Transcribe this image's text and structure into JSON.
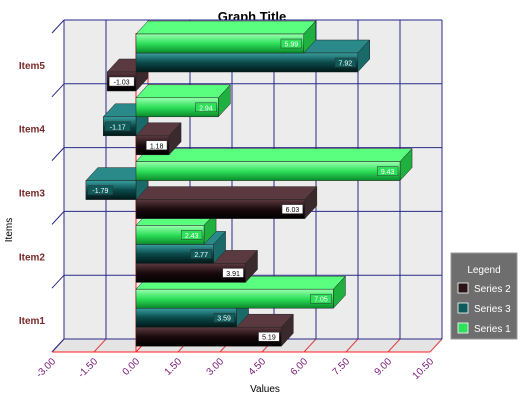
{
  "chart_data": {
    "type": "bar",
    "orientation": "horizontal",
    "title": "Graph Title",
    "xlabel": "Values",
    "ylabel": "Items",
    "categories": [
      "Item1",
      "Item2",
      "Item3",
      "Item4",
      "Item5"
    ],
    "xlim": [
      -3.0,
      10.5
    ],
    "x_ticks": [
      "-3.00",
      "-1.50",
      "0.00",
      "1.50",
      "3.00",
      "4.50",
      "6.00",
      "7.50",
      "9.00",
      "10.50"
    ],
    "series": [
      {
        "name": "Series 2",
        "values": [
          5.19,
          3.91,
          6.03,
          1.18,
          -1.03
        ],
        "labels": [
          "5.19",
          "3.91",
          "6.03",
          "1.18",
          "-1.03"
        ],
        "color": "#2a1418"
      },
      {
        "name": "Series 3",
        "values": [
          3.59,
          2.77,
          -1.79,
          -1.17,
          7.92
        ],
        "labels": [
          "3.59",
          "2.77",
          "-1.79",
          "-1.17",
          "7.92"
        ],
        "color": "#0f5a5a"
      },
      {
        "name": "Series 1",
        "values": [
          7.05,
          2.43,
          9.43,
          2.94,
          5.99
        ],
        "labels": [
          "7.05",
          "2.43",
          "9.43",
          "2.94",
          "5.99"
        ],
        "color": "#2ee05a"
      }
    ],
    "legend": {
      "title": "Legend",
      "position": "right"
    },
    "grid": true,
    "three_d": true
  }
}
